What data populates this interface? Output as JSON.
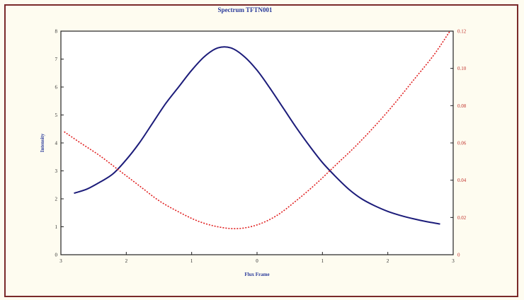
{
  "chart_data": {
    "type": "line",
    "title": "Spectrum TFTN001",
    "xlabel": "Flux Frame",
    "ylabel_left": "Intensity",
    "ylabel_right": "",
    "x_ticks": [
      "3",
      "2",
      "1",
      "0",
      "1",
      "2",
      "3"
    ],
    "y_left_ticks": [
      "0",
      "1",
      "2",
      "3",
      "4",
      "5",
      "6",
      "7",
      "8"
    ],
    "y_right_ticks": [
      "0",
      "0.02",
      "0.04",
      "0.06",
      "0.08",
      "0.10",
      "0.12"
    ],
    "xlim": [
      0,
      6
    ],
    "ylim_left": [
      0,
      8
    ],
    "ylim_right": [
      0,
      0.12
    ],
    "grid": false,
    "colors": {
      "series1": "#1c1c7a",
      "series2": "#e02020",
      "title": "#2a3a9a",
      "frame": "#7a2a2a"
    },
    "series": [
      {
        "axis": "left",
        "style": "solid",
        "x": [
          0.2,
          0.4,
          0.6,
          0.8,
          1.0,
          1.2,
          1.4,
          1.6,
          1.8,
          2.0,
          2.2,
          2.4,
          2.6,
          2.8,
          3.0,
          3.2,
          3.4,
          3.6,
          3.8,
          4.0,
          4.2,
          4.4,
          4.6,
          4.8,
          5.0,
          5.2,
          5.4,
          5.6,
          5.8
        ],
        "values": [
          2.2,
          2.35,
          2.6,
          2.9,
          3.4,
          4.0,
          4.7,
          5.4,
          6.0,
          6.6,
          7.1,
          7.4,
          7.4,
          7.1,
          6.6,
          5.95,
          5.25,
          4.55,
          3.9,
          3.3,
          2.8,
          2.35,
          2.0,
          1.75,
          1.55,
          1.4,
          1.28,
          1.18,
          1.1
        ]
      },
      {
        "axis": "right",
        "style": "dashed",
        "x": [
          0.05,
          0.3,
          0.6,
          0.9,
          1.2,
          1.5,
          1.8,
          2.1,
          2.4,
          2.7,
          3.0,
          3.3,
          3.6,
          3.9,
          4.2,
          4.5,
          4.8,
          5.1,
          5.4,
          5.7,
          5.95
        ],
        "values": [
          0.066,
          0.06,
          0.053,
          0.045,
          0.037,
          0.029,
          0.023,
          0.018,
          0.015,
          0.014,
          0.016,
          0.021,
          0.029,
          0.038,
          0.048,
          0.058,
          0.069,
          0.081,
          0.094,
          0.107,
          0.12
        ]
      }
    ]
  }
}
